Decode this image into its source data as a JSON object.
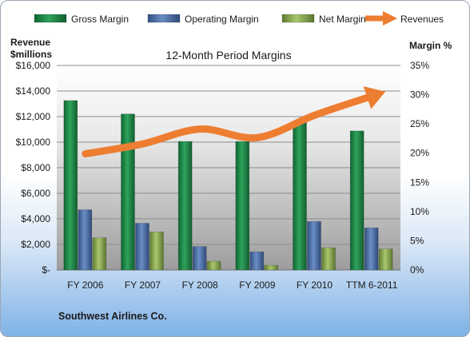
{
  "chart_data": {
    "type": "bar",
    "title": "12-Month Period Margins",
    "categories": [
      "FY 2006",
      "FY 2007",
      "FY 2008",
      "FY 2009",
      "FY 2010",
      "TTM 6-2011"
    ],
    "ylabel_left": "Revenue $millions",
    "ylabel_left_lines": [
      "Revenue",
      "$millions"
    ],
    "ylabel_right": "Margin %",
    "ylim_left": [
      0,
      16000
    ],
    "ylim_right": [
      0,
      35
    ],
    "left_ticks": [
      "$-",
      "$2,000",
      "$4,000",
      "$6,000",
      "$8,000",
      "$10,000",
      "$12,000",
      "$14,000",
      "$16,000"
    ],
    "right_ticks": [
      "0%",
      "5%",
      "10%",
      "15%",
      "20%",
      "25%",
      "30%",
      "35%"
    ],
    "grid": true,
    "legend_position": "top",
    "series": [
      {
        "name": "Gross Margin",
        "type": "bar",
        "axis": "right",
        "color": "#1f8a48",
        "values": [
          29.0,
          26.7,
          22.0,
          22.0,
          25.2,
          23.8
        ]
      },
      {
        "name": "Operating Margin",
        "type": "bar",
        "axis": "right",
        "color": "#4a6fa8",
        "values": [
          10.3,
          8.0,
          4.0,
          3.1,
          8.3,
          7.2
        ]
      },
      {
        "name": "Net Margin",
        "type": "bar",
        "axis": "right",
        "color": "#8dae52",
        "values": [
          5.5,
          6.5,
          1.5,
          0.8,
          3.8,
          3.6
        ]
      },
      {
        "name": "Revenues",
        "type": "line",
        "axis": "left",
        "color": "#ed7d31",
        "values": [
          9086,
          9861,
          11023,
          10350,
          12104,
          13600
        ]
      }
    ],
    "footnote": "Southwest Airlines Co."
  }
}
